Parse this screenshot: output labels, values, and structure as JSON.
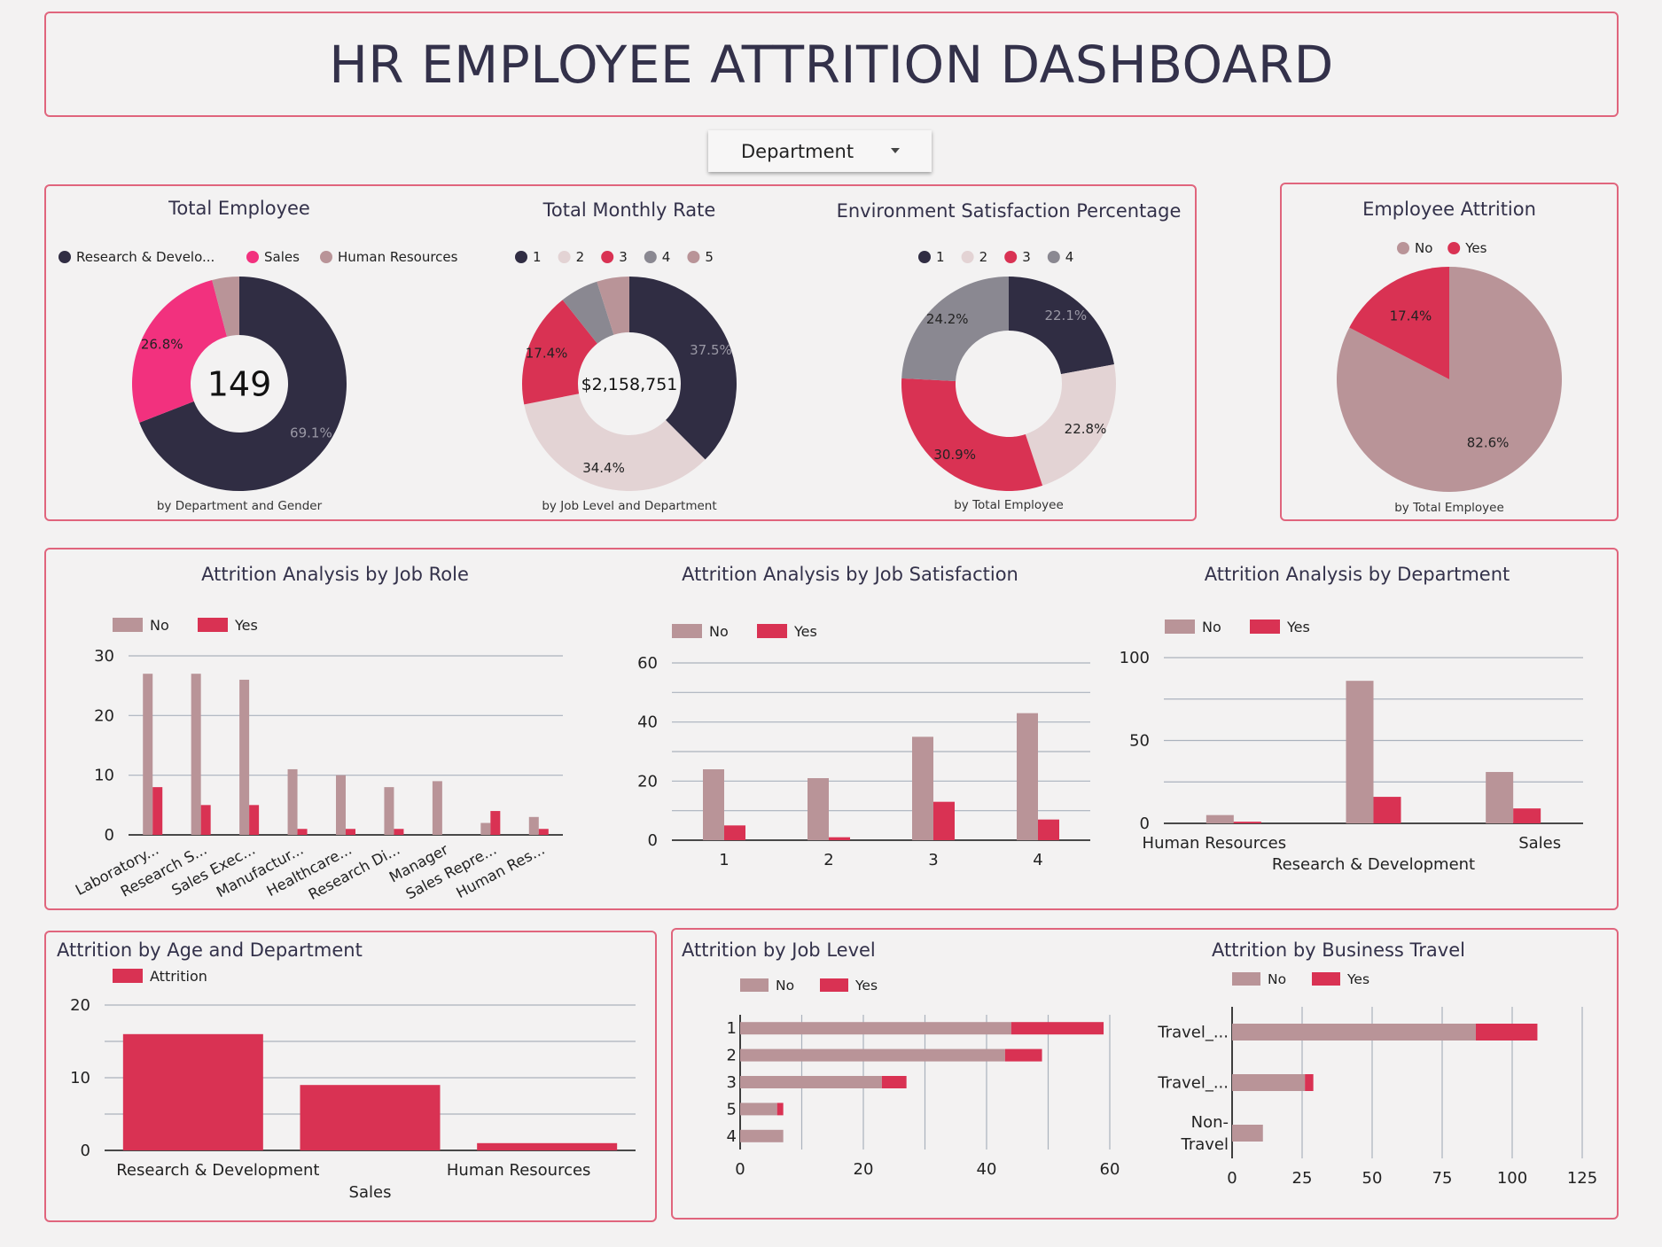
{
  "header": {
    "title": "HR EMPLOYEE ATTRITION DASHBOARD"
  },
  "filter": {
    "label": "Department"
  },
  "colors": {
    "navy": "#302d43",
    "pink": "#f2317e",
    "mauve": "#b99498",
    "light": "#e3d3d4",
    "red": "#d93253",
    "gray": "#8a8891",
    "axis": "#aab2bd"
  },
  "chart_data": [
    {
      "id": "total-employee",
      "type": "pie",
      "title": "Total Employee",
      "subtitle": "by Department and Gender",
      "center_label": "149",
      "legend": [
        "Research & Develo...",
        "Sales",
        "Human Resources"
      ],
      "values": [
        69.1,
        26.8,
        4.1
      ],
      "labels": [
        "69.1%",
        "26.8%",
        ""
      ],
      "colors": [
        "#302d43",
        "#f2317e",
        "#b99498"
      ]
    },
    {
      "id": "total-monthly-rate",
      "type": "pie",
      "title": "Total Monthly Rate",
      "subtitle": "by Job Level and Department",
      "center_label": "$2,158,751",
      "legend": [
        "1",
        "2",
        "3",
        "4",
        "5"
      ],
      "values": [
        37.5,
        34.4,
        17.4,
        5.8,
        4.9
      ],
      "labels": [
        "37.5%",
        "34.4%",
        "17.4%",
        "",
        ""
      ],
      "colors": [
        "#302d43",
        "#e3d3d4",
        "#d93253",
        "#8a8891",
        "#b99498"
      ]
    },
    {
      "id": "environment-satisfaction",
      "type": "pie",
      "title": "Environment Satisfaction Percentage",
      "subtitle": "by Total Employee",
      "legend": [
        "1",
        "2",
        "3",
        "4"
      ],
      "values": [
        22.1,
        22.8,
        30.9,
        24.2
      ],
      "labels": [
        "22.1%",
        "22.8%",
        "30.9%",
        "24.2%"
      ],
      "colors": [
        "#302d43",
        "#e3d3d4",
        "#d93253",
        "#8a8891"
      ]
    },
    {
      "id": "employee-attrition",
      "type": "pie",
      "title": "Employee Attrition",
      "subtitle": "by Total Employee",
      "legend": [
        "No",
        "Yes"
      ],
      "values": [
        82.6,
        17.4
      ],
      "labels": [
        "82.6%",
        "17.4%"
      ],
      "colors": [
        "#b99498",
        "#d93253"
      ]
    },
    {
      "id": "attrition-job-role",
      "type": "bar",
      "title": "Attrition Analysis by Job Role",
      "categories": [
        "Laboratory...",
        "Research S...",
        "Sales Exec...",
        "Manufactur...",
        "Healthcare...",
        "Research Di...",
        "Manager",
        "Sales Repre...",
        "Human Res..."
      ],
      "series": [
        {
          "name": "No",
          "values": [
            27,
            27,
            26,
            11,
            10,
            8,
            9,
            2,
            3
          ]
        },
        {
          "name": "Yes",
          "values": [
            8,
            5,
            5,
            1,
            1,
            1,
            0,
            4,
            1
          ]
        }
      ],
      "ylim": [
        0,
        30
      ],
      "yticks": [
        0,
        10,
        20,
        30
      ]
    },
    {
      "id": "attrition-job-satisfaction",
      "type": "bar",
      "title": "Attrition Analysis by Job Satisfaction",
      "categories": [
        "1",
        "2",
        "3",
        "4"
      ],
      "series": [
        {
          "name": "No",
          "values": [
            24,
            21,
            35,
            43
          ]
        },
        {
          "name": "Yes",
          "values": [
            5,
            1,
            13,
            7
          ]
        }
      ],
      "ylim": [
        0,
        60
      ],
      "yticks": [
        0,
        20,
        40,
        60
      ]
    },
    {
      "id": "attrition-department",
      "type": "bar",
      "title": "Attrition Analysis by Department",
      "categories": [
        "Human Resources",
        "Research & Development",
        "Sales"
      ],
      "series": [
        {
          "name": "No",
          "values": [
            5,
            86,
            31
          ]
        },
        {
          "name": "Yes",
          "values": [
            1,
            16,
            9
          ]
        }
      ],
      "ylim": [
        0,
        100
      ],
      "yticks": [
        0,
        50,
        100
      ]
    },
    {
      "id": "attrition-age-department",
      "type": "bar",
      "title": "Attrition by Age and Department",
      "categories": [
        "Research & Development",
        "Sales",
        "Human Resources"
      ],
      "series": [
        {
          "name": "Attrition",
          "values": [
            16,
            9,
            1
          ]
        }
      ],
      "ylim": [
        0,
        20
      ],
      "yticks": [
        0,
        10,
        20
      ]
    },
    {
      "id": "attrition-job-level",
      "type": "bar",
      "orientation": "horizontal",
      "stacked": true,
      "title": "Attrition by Job Level",
      "categories": [
        "1",
        "2",
        "3",
        "5",
        "4"
      ],
      "series": [
        {
          "name": "No",
          "values": [
            44,
            43,
            23,
            6,
            7
          ]
        },
        {
          "name": "Yes",
          "values": [
            15,
            6,
            4,
            1,
            0
          ]
        }
      ],
      "xlim": [
        0,
        60
      ],
      "xticks": [
        0,
        20,
        40,
        60
      ]
    },
    {
      "id": "attrition-business-travel",
      "type": "bar",
      "orientation": "horizontal",
      "stacked": true,
      "title": "Attrition by Business Travel",
      "categories": [
        "Travel_...",
        "Travel_...",
        "Non-Travel"
      ],
      "series": [
        {
          "name": "No",
          "values": [
            87,
            26,
            11
          ]
        },
        {
          "name": "Yes",
          "values": [
            22,
            3,
            0
          ]
        }
      ],
      "xlim": [
        0,
        125
      ],
      "xticks": [
        0,
        25,
        50,
        75,
        100,
        125
      ]
    }
  ]
}
